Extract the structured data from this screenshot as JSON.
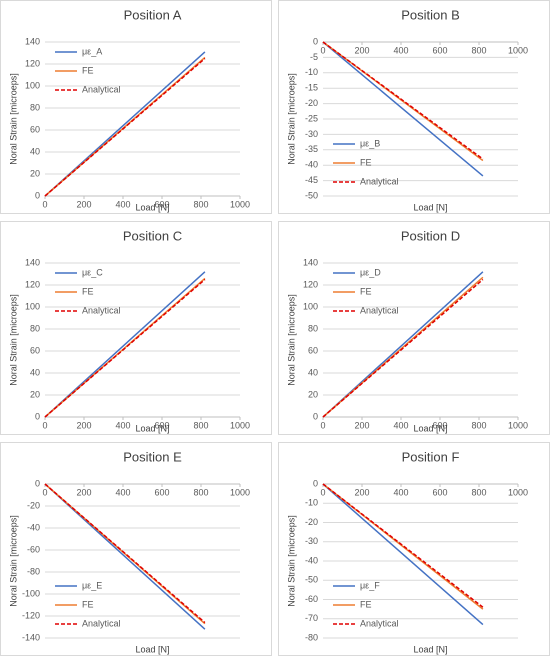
{
  "chart_data": [
    {
      "type": "line",
      "title": "Position A",
      "x_label": "Load [N]",
      "y_label": "Noral Strain [microeps]",
      "grid": true,
      "legend": "upper left",
      "x": [
        0,
        820
      ],
      "xlim": [
        0,
        1000
      ],
      "xticks": [
        0,
        200,
        400,
        600,
        800,
        1000
      ],
      "ylim": [
        0,
        140
      ],
      "yticks": [
        0,
        20,
        40,
        60,
        80,
        100,
        120,
        140
      ],
      "series": [
        {
          "name": "με_A",
          "color": "#4472c4",
          "linestyle": "solid",
          "values": [
            0,
            131
          ]
        },
        {
          "name": "FE",
          "color": "#ed7d31",
          "linestyle": "solid",
          "values": [
            0,
            126
          ]
        },
        {
          "name": "Analytical",
          "color": "#e00000",
          "linestyle": "dashed",
          "values": [
            0,
            125
          ]
        }
      ]
    },
    {
      "type": "line",
      "title": "Position B",
      "x_label": "Load [N]",
      "y_label": "Noral Strain [microeps]",
      "grid": true,
      "legend": "lower left",
      "x": [
        0,
        820
      ],
      "xlim": [
        0,
        1000
      ],
      "xticks": [
        0,
        200,
        400,
        600,
        800,
        1000
      ],
      "ylim": [
        -50,
        0
      ],
      "yticks": [
        0,
        -5,
        -10,
        -15,
        -20,
        -25,
        -30,
        -35,
        -40,
        -45,
        -50
      ],
      "series": [
        {
          "name": "με_B",
          "color": "#4472c4",
          "linestyle": "solid",
          "values": [
            0,
            -43.5
          ]
        },
        {
          "name": "FE",
          "color": "#ed7d31",
          "linestyle": "solid",
          "values": [
            0,
            -38.5
          ]
        },
        {
          "name": "Analytical",
          "color": "#e00000",
          "linestyle": "dashed",
          "values": [
            0,
            -38
          ]
        }
      ]
    },
    {
      "type": "line",
      "title": "Position C",
      "x_label": "Load [N]",
      "y_label": "Noral Strain [microeps]",
      "grid": true,
      "legend": "upper left",
      "x": [
        0,
        820
      ],
      "xlim": [
        0,
        1000
      ],
      "xticks": [
        0,
        200,
        400,
        600,
        800,
        1000
      ],
      "ylim": [
        0,
        140
      ],
      "yticks": [
        0,
        20,
        40,
        60,
        80,
        100,
        120,
        140
      ],
      "series": [
        {
          "name": "με_C",
          "color": "#4472c4",
          "linestyle": "solid",
          "values": [
            0,
            132
          ]
        },
        {
          "name": "FE",
          "color": "#ed7d31",
          "linestyle": "solid",
          "values": [
            0,
            126
          ]
        },
        {
          "name": "Analytical",
          "color": "#e00000",
          "linestyle": "dashed",
          "values": [
            0,
            125
          ]
        }
      ]
    },
    {
      "type": "line",
      "title": "Position D",
      "x_label": "Load [N]",
      "y_label": "Noral Strain [microeps]",
      "grid": true,
      "legend": "upper left",
      "x": [
        0,
        820
      ],
      "xlim": [
        0,
        1000
      ],
      "xticks": [
        0,
        200,
        400,
        600,
        800,
        1000
      ],
      "ylim": [
        0,
        140
      ],
      "yticks": [
        0,
        20,
        40,
        60,
        80,
        100,
        120,
        140
      ],
      "series": [
        {
          "name": "με_D",
          "color": "#4472c4",
          "linestyle": "solid",
          "values": [
            0,
            132
          ]
        },
        {
          "name": "FE",
          "color": "#ed7d31",
          "linestyle": "solid",
          "values": [
            0,
            127
          ]
        },
        {
          "name": "Analytical",
          "color": "#e00000",
          "linestyle": "dashed",
          "values": [
            0,
            125
          ]
        }
      ]
    },
    {
      "type": "line",
      "title": "Position E",
      "x_label": "Load [N]",
      "y_label": "Noral Strain [microeps]",
      "grid": true,
      "legend": "lower left",
      "x": [
        0,
        820
      ],
      "xlim": [
        0,
        1000
      ],
      "xticks": [
        0,
        200,
        400,
        600,
        800,
        1000
      ],
      "ylim": [
        -140,
        0
      ],
      "yticks": [
        0,
        -20,
        -40,
        -60,
        -80,
        -100,
        -120,
        -140
      ],
      "series": [
        {
          "name": "με_E",
          "color": "#4472c4",
          "linestyle": "solid",
          "values": [
            0,
            -132
          ]
        },
        {
          "name": "FE",
          "color": "#ed7d31",
          "linestyle": "solid",
          "values": [
            0,
            -127
          ]
        },
        {
          "name": "Analytical",
          "color": "#e00000",
          "linestyle": "dashed",
          "values": [
            0,
            -126
          ]
        }
      ]
    },
    {
      "type": "line",
      "title": "Position F",
      "x_label": "Load [N]",
      "y_label": "Noral Strain [microeps]",
      "grid": true,
      "legend": "lower left",
      "x": [
        0,
        820
      ],
      "xlim": [
        0,
        1000
      ],
      "xticks": [
        0,
        200,
        400,
        600,
        800,
        1000
      ],
      "ylim": [
        -80,
        0
      ],
      "yticks": [
        0,
        -10,
        -20,
        -30,
        -40,
        -50,
        -60,
        -70,
        -80
      ],
      "series": [
        {
          "name": "με_F",
          "color": "#4472c4",
          "linestyle": "solid",
          "values": [
            0,
            -73
          ]
        },
        {
          "name": "FE",
          "color": "#ed7d31",
          "linestyle": "solid",
          "values": [
            0,
            -65
          ]
        },
        {
          "name": "Analytical",
          "color": "#e00000",
          "linestyle": "dashed",
          "values": [
            0,
            -64
          ]
        }
      ]
    }
  ]
}
